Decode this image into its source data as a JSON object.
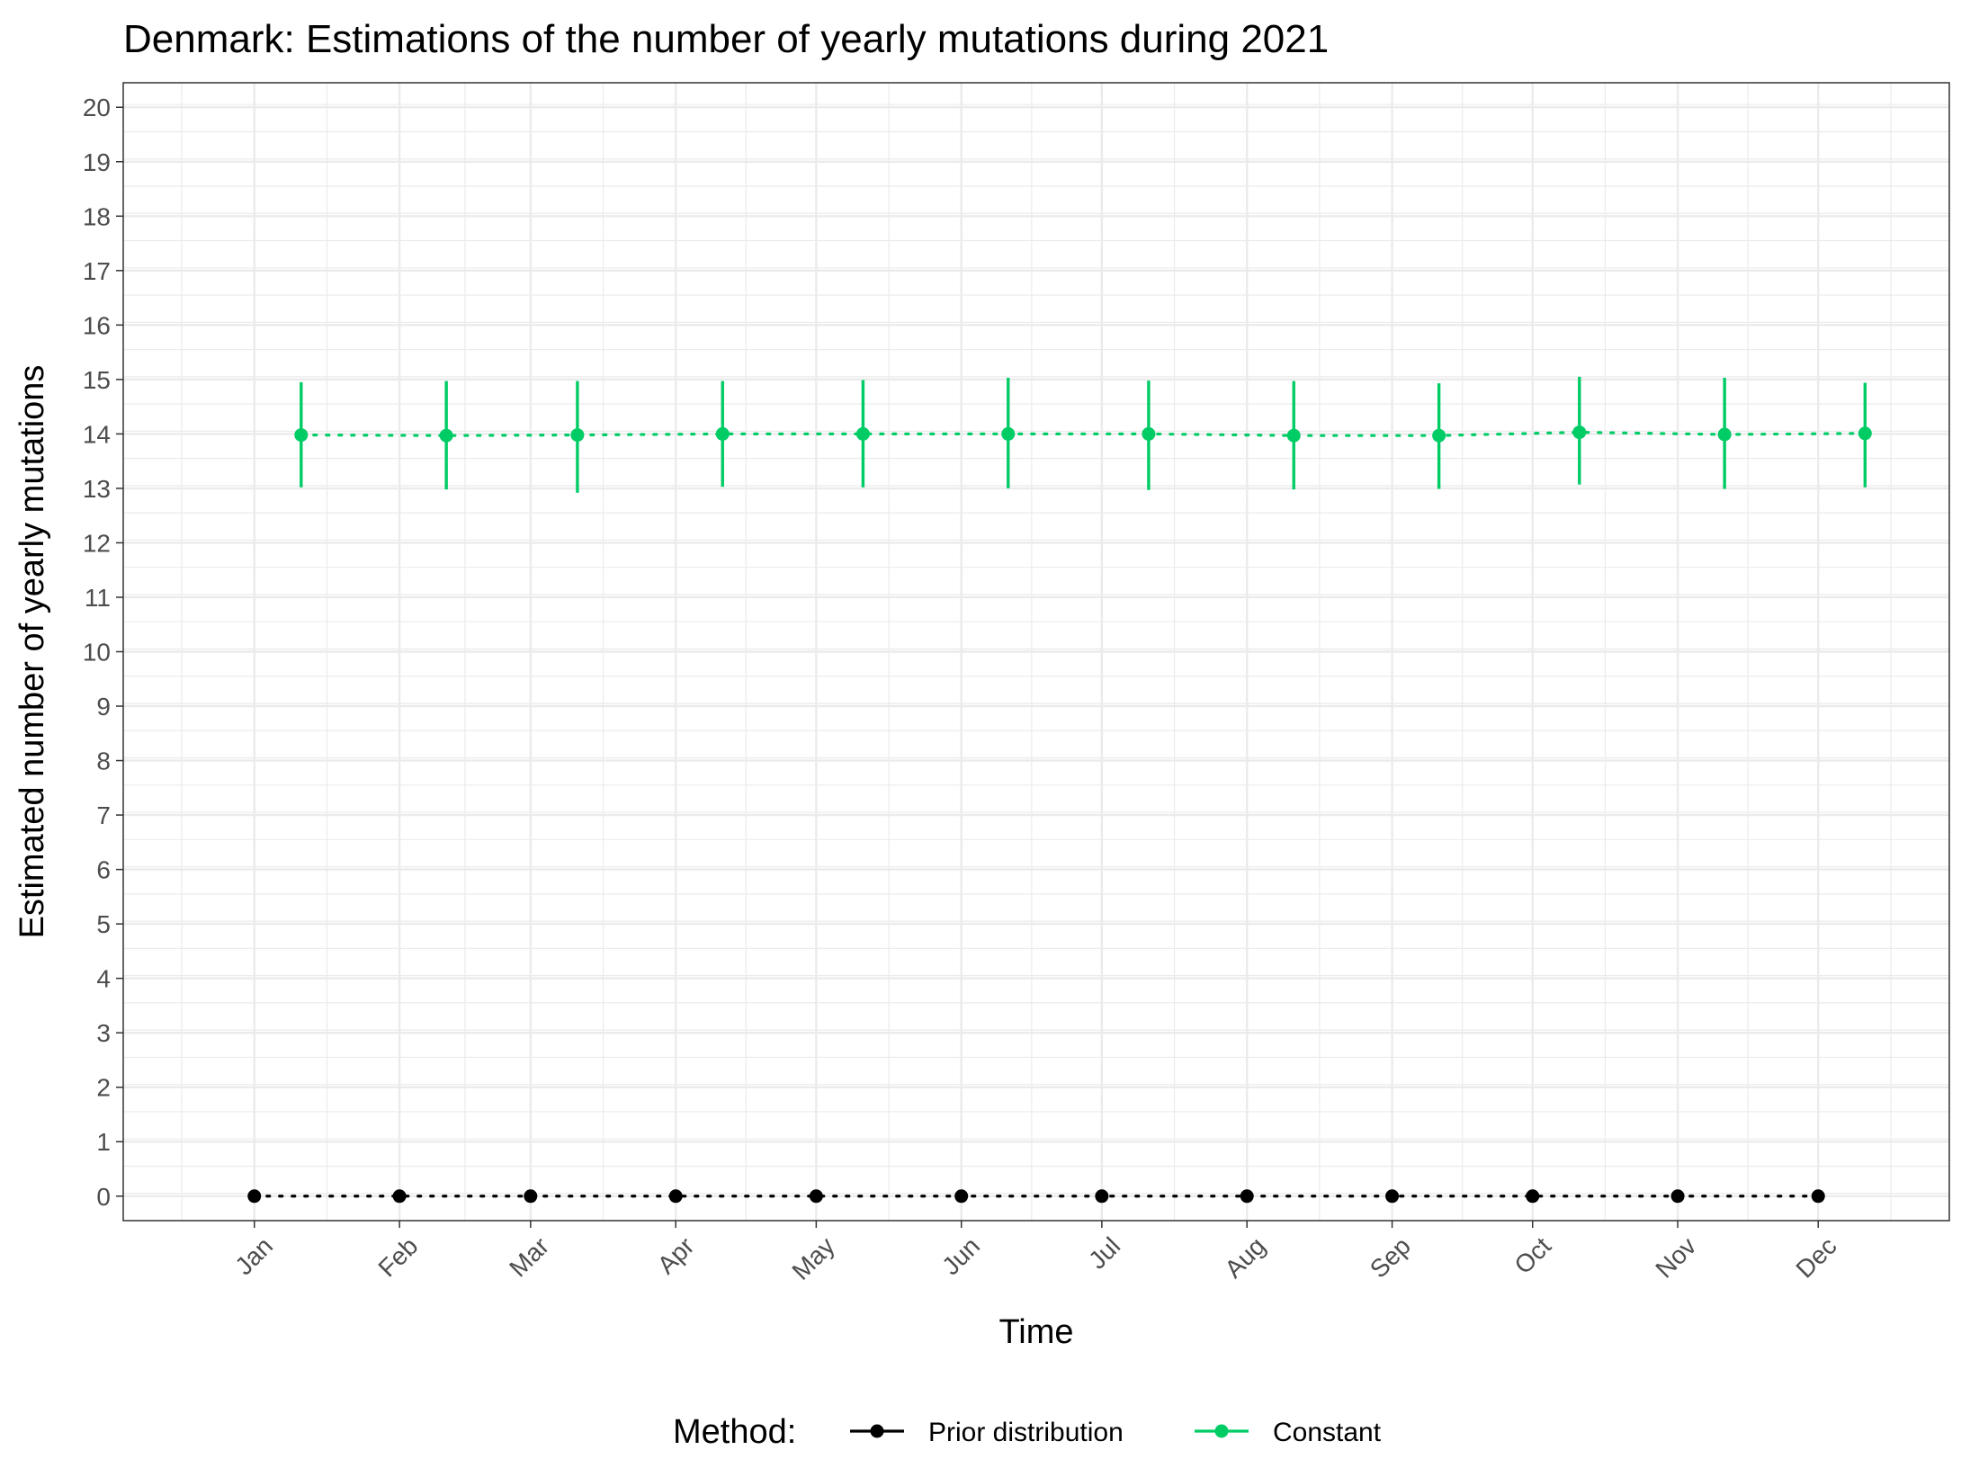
{
  "chart_data": {
    "type": "line",
    "title": "Denmark: Estimations of the number of yearly mutations during 2021",
    "xlabel": "Time",
    "ylabel": "Estimated number of yearly mutations",
    "x_ticks": [
      "Jan",
      "Feb",
      "Mar",
      "Apr",
      "May",
      "Jun",
      "Jul",
      "Aug",
      "Sep",
      "Oct",
      "Nov",
      "Dec"
    ],
    "ylim": [
      -0.45,
      20.45
    ],
    "y_ticks": [
      0,
      1,
      2,
      3,
      4,
      5,
      6,
      7,
      8,
      9,
      10,
      11,
      12,
      13,
      14,
      15,
      16,
      17,
      18,
      19,
      20
    ],
    "grid": true,
    "legend": {
      "title": "Method:",
      "position": "bottom"
    },
    "series": [
      {
        "name": "Prior distribution",
        "color": "#000000",
        "x": [
          "2021-01-01",
          "2021-02-01",
          "2021-03-01",
          "2021-04-01",
          "2021-05-01",
          "2021-06-01",
          "2021-07-01",
          "2021-08-01",
          "2021-09-01",
          "2021-10-01",
          "2021-11-01",
          "2021-12-01"
        ],
        "values": [
          0,
          0,
          0,
          0,
          0,
          0,
          0,
          0,
          0,
          0,
          0,
          0
        ]
      },
      {
        "name": "Constant",
        "color": "#00cc66",
        "x": [
          "2021-01-11",
          "2021-02-11",
          "2021-03-11",
          "2021-04-11",
          "2021-05-11",
          "2021-06-11",
          "2021-07-11",
          "2021-08-11",
          "2021-09-11",
          "2021-10-11",
          "2021-11-11",
          "2021-12-11"
        ],
        "values": [
          13.98,
          13.97,
          13.98,
          14.0,
          14.0,
          14.0,
          14.0,
          13.97,
          13.97,
          14.03,
          13.99,
          14.01
        ],
        "lower": [
          13.02,
          12.98,
          12.92,
          13.03,
          13.02,
          13.0,
          12.97,
          12.98,
          12.99,
          13.07,
          12.99,
          13.02
        ],
        "upper": [
          14.95,
          14.97,
          14.97,
          14.97,
          14.99,
          15.03,
          14.98,
          14.97,
          14.93,
          15.05,
          15.03,
          14.94
        ]
      }
    ]
  }
}
